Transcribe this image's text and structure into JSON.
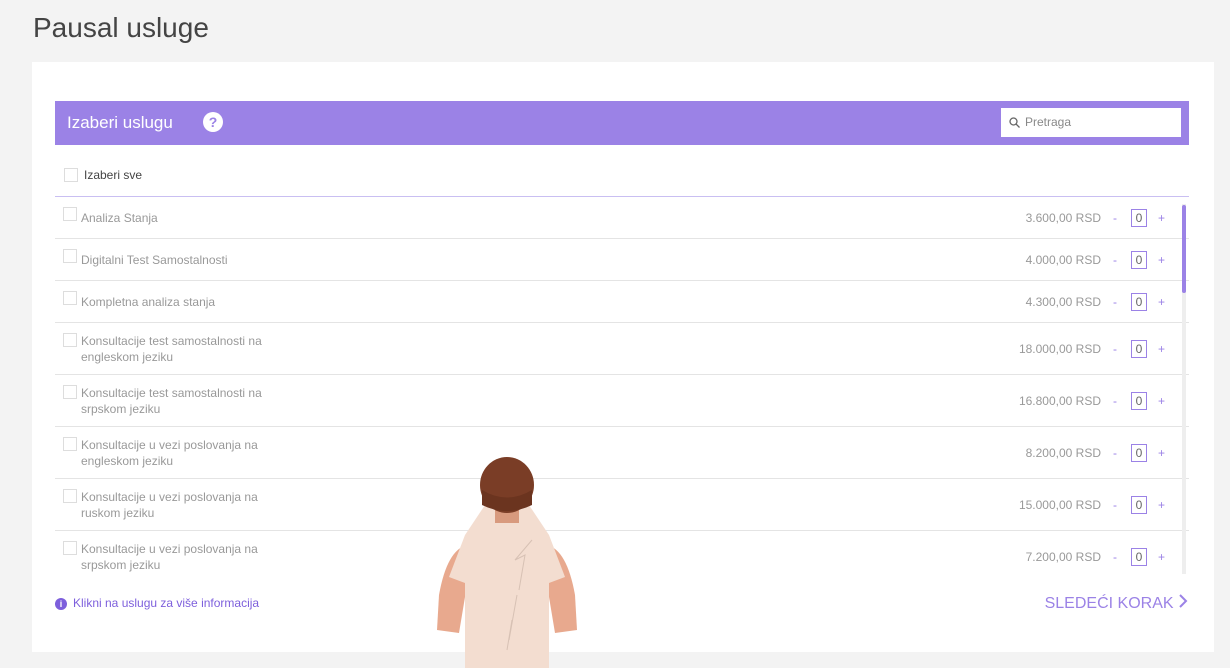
{
  "page": {
    "title": "Pausal usluge"
  },
  "panel": {
    "header": "Izaberi uslugu",
    "help_icon": "?",
    "search_placeholder": "Pretraga",
    "select_all": "Izaberi sve",
    "minus": "-",
    "plus": "+",
    "rows": [
      {
        "name": "Analiza Stanja",
        "price": "3.600,00 RSD",
        "qty": "0"
      },
      {
        "name": "Digitalni Test Samostalnosti",
        "price": "4.000,00 RSD",
        "qty": "0"
      },
      {
        "name": "Kompletna analiza stanja",
        "price": "4.300,00 RSD",
        "qty": "0"
      },
      {
        "name": "Konsultacije test samostalnosti na engleskom jeziku",
        "price": "18.000,00 RSD",
        "qty": "0"
      },
      {
        "name": "Konsultacije test samostalnosti na srpskom jeziku",
        "price": "16.800,00 RSD",
        "qty": "0"
      },
      {
        "name": "Konsultacije u vezi poslovanja na engleskom jeziku",
        "price": "8.200,00 RSD",
        "qty": "0"
      },
      {
        "name": "Konsultacije u vezi poslovanja na ruskom jeziku",
        "price": "15.000,00 RSD",
        "qty": "0"
      },
      {
        "name": "Konsultacije u vezi poslovanja na srpskom jeziku",
        "price": "7.200,00 RSD",
        "qty": "0"
      }
    ]
  },
  "footer": {
    "info_icon": "i",
    "info": "Klikni na uslugu za više informacija",
    "next": "SLEDEĆI KORAK"
  }
}
